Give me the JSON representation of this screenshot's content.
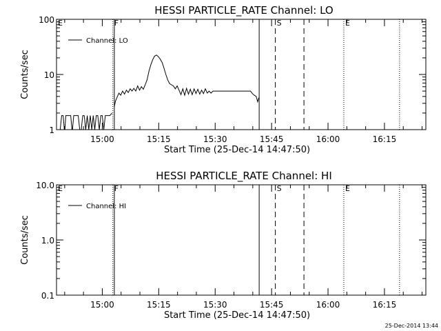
{
  "footer": {
    "stamp": "25-Dec-2014 13:44"
  },
  "chart_data": [
    {
      "type": "line",
      "title": "HESSI PARTICLE_RATE Channel: LO",
      "xlabel": "Start Time (25-Dec-14 14:47:50)",
      "ylabel": "Counts/sec",
      "yscale": "log",
      "ylim": [
        1,
        100
      ],
      "xlim_minutes": [
        47.83,
        146.0
      ],
      "x_ticks": [
        {
          "label": "15:00",
          "minute": 60
        },
        {
          "label": "15:15",
          "minute": 75
        },
        {
          "label": "15:30",
          "minute": 90
        },
        {
          "label": "15:45",
          "minute": 105
        },
        {
          "label": "16:00",
          "minute": 120
        },
        {
          "label": "16:15",
          "minute": 135
        }
      ],
      "y_ticks": [
        {
          "label": "1",
          "value": 1
        },
        {
          "label": "10",
          "value": 10
        },
        {
          "label": "100",
          "value": 100
        }
      ],
      "legend": {
        "label": "Channel: LO",
        "position": "top-left"
      },
      "markers": [
        {
          "label": "E",
          "minute": 47.83,
          "style": "none"
        },
        {
          "label": "F",
          "minute": 62.8,
          "style": "dotted"
        },
        {
          "label": "",
          "minute": 63.2,
          "style": "solid"
        },
        {
          "label": "",
          "minute": 101.7,
          "style": "solid"
        },
        {
          "label": "S",
          "minute": 106.0,
          "style": "dashed"
        },
        {
          "label": "",
          "minute": 113.6,
          "style": "dashed"
        },
        {
          "label": "E",
          "minute": 124.2,
          "style": "dotted"
        },
        {
          "label": "",
          "minute": 139.0,
          "style": "dotted"
        }
      ],
      "series": [
        {
          "name": "Channel: LO",
          "segments": [
            [
              [
                48.8,
                1
              ],
              [
                49.2,
                1.8
              ],
              [
                49.6,
                1.8
              ],
              [
                50.0,
                0.85
              ],
              [
                50.3,
                1.8
              ],
              [
                50.6,
                1.8
              ],
              [
                51.2,
                1.8
              ],
              [
                51.6,
                1.8
              ],
              [
                52.0,
                0.9
              ],
              [
                52.4,
                1.8
              ],
              [
                52.8,
                1.8
              ],
              [
                53.2,
                1.8
              ],
              [
                53.6,
                1.8
              ],
              [
                54.0,
                1
              ],
              [
                54.4,
                1
              ],
              [
                54.8,
                1.8
              ],
              [
                55.2,
                1.8
              ],
              [
                55.6,
                1
              ],
              [
                56.0,
                1.8
              ],
              [
                56.4,
                1
              ],
              [
                56.8,
                1.8
              ],
              [
                57.2,
                1
              ],
              [
                57.6,
                1.8
              ],
              [
                58.0,
                1
              ],
              [
                58.4,
                1.8
              ],
              [
                58.8,
                1.8
              ],
              [
                59.2,
                1
              ],
              [
                59.6,
                1.8
              ],
              [
                60.0,
                1.8
              ],
              [
                60.4,
                1
              ],
              [
                60.8,
                1.8
              ],
              [
                61.2,
                1.8
              ],
              [
                61.6,
                1.8
              ],
              [
                62.0,
                1.8
              ],
              [
                62.6,
                2.0
              ]
            ],
            [
              [
                63.2,
                2.6
              ],
              [
                63.5,
                3.3
              ],
              [
                63.9,
                3.8
              ],
              [
                64.4,
                4.6
              ],
              [
                64.9,
                4.2
              ],
              [
                65.4,
                5.0
              ],
              [
                65.9,
                4.4
              ],
              [
                66.4,
                5.2
              ],
              [
                66.9,
                4.7
              ],
              [
                67.4,
                5.5
              ],
              [
                67.9,
                5.0
              ],
              [
                68.4,
                5.6
              ],
              [
                68.9,
                5.0
              ],
              [
                69.4,
                6.2
              ],
              [
                69.9,
                5.2
              ],
              [
                70.4,
                6.0
              ],
              [
                70.9,
                5.4
              ],
              [
                71.4,
                6.5
              ],
              [
                71.9,
                8.0
              ],
              [
                72.4,
                11.5
              ],
              [
                72.9,
                15.0
              ],
              [
                73.4,
                18.5
              ],
              [
                73.9,
                21.5
              ],
              [
                74.4,
                22.5
              ],
              [
                74.9,
                21.0
              ],
              [
                75.4,
                19.0
              ],
              [
                75.9,
                16.5
              ],
              [
                76.4,
                13.0
              ],
              [
                76.9,
                10.0
              ],
              [
                77.4,
                8.0
              ],
              [
                77.9,
                6.8
              ],
              [
                78.4,
                6.5
              ],
              [
                78.9,
                6.2
              ],
              [
                79.4,
                5.5
              ],
              [
                79.9,
                6.2
              ],
              [
                80.4,
                5.2
              ],
              [
                80.9,
                4.3
              ],
              [
                81.4,
                5.5
              ],
              [
                81.9,
                4.2
              ],
              [
                82.4,
                5.6
              ],
              [
                82.9,
                4.4
              ],
              [
                83.4,
                5.4
              ],
              [
                83.9,
                4.3
              ],
              [
                84.4,
                5.5
              ],
              [
                84.9,
                4.5
              ],
              [
                85.4,
                5.4
              ],
              [
                85.9,
                4.4
              ],
              [
                86.4,
                5.2
              ],
              [
                86.9,
                4.5
              ],
              [
                87.4,
                5.5
              ],
              [
                87.9,
                4.6
              ],
              [
                88.4,
                5.0
              ],
              [
                88.9,
                4.6
              ],
              [
                89.4,
                5.0
              ],
              [
                89.9,
                5.0
              ],
              [
                90.4,
                5.0
              ],
              [
                90.9,
                5.0
              ],
              [
                91.4,
                5.0
              ],
              [
                91.9,
                5.0
              ],
              [
                92.4,
                5.0
              ],
              [
                92.9,
                5.0
              ],
              [
                93.4,
                5.0
              ],
              [
                93.9,
                5.0
              ],
              [
                94.4,
                5.0
              ],
              [
                94.9,
                5.0
              ],
              [
                95.4,
                5.0
              ],
              [
                95.9,
                5.0
              ],
              [
                96.4,
                5.0
              ],
              [
                96.9,
                5.0
              ],
              [
                97.4,
                5.0
              ],
              [
                97.9,
                5.0
              ],
              [
                98.4,
                5.0
              ],
              [
                98.9,
                5.0
              ],
              [
                99.4,
                5.0
              ],
              [
                99.9,
                4.5
              ],
              [
                100.4,
                4.2
              ],
              [
                100.9,
                4.0
              ],
              [
                101.3,
                3.2
              ],
              [
                101.6,
                3.8
              ]
            ]
          ]
        }
      ]
    },
    {
      "type": "line",
      "title": "HESSI PARTICLE_RATE Channel: HI",
      "xlabel": "Start Time (25-Dec-14 14:47:50)",
      "ylabel": "Counts/sec",
      "yscale": "log",
      "ylim": [
        0.1,
        10.0
      ],
      "xlim_minutes": [
        47.83,
        146.0
      ],
      "x_ticks": [
        {
          "label": "15:00",
          "minute": 60
        },
        {
          "label": "15:15",
          "minute": 75
        },
        {
          "label": "15:30",
          "minute": 90
        },
        {
          "label": "15:45",
          "minute": 105
        },
        {
          "label": "16:00",
          "minute": 120
        },
        {
          "label": "16:15",
          "minute": 135
        }
      ],
      "y_ticks": [
        {
          "label": "0.1",
          "value": 0.1
        },
        {
          "label": "1.0",
          "value": 1.0
        },
        {
          "label": "10.0",
          "value": 10.0
        }
      ],
      "legend": {
        "label": "Channel: HI",
        "position": "top-left"
      },
      "markers": [
        {
          "label": "E",
          "minute": 47.83,
          "style": "none"
        },
        {
          "label": "F",
          "minute": 62.8,
          "style": "dotted"
        },
        {
          "label": "",
          "minute": 63.2,
          "style": "solid"
        },
        {
          "label": "",
          "minute": 101.7,
          "style": "solid"
        },
        {
          "label": "S",
          "minute": 106.0,
          "style": "dashed"
        },
        {
          "label": "",
          "minute": 113.6,
          "style": "dashed"
        },
        {
          "label": "E",
          "minute": 124.2,
          "style": "dotted"
        },
        {
          "label": "",
          "minute": 139.0,
          "style": "dotted"
        }
      ],
      "series": [
        {
          "name": "Channel: HI",
          "segments": []
        }
      ]
    }
  ]
}
